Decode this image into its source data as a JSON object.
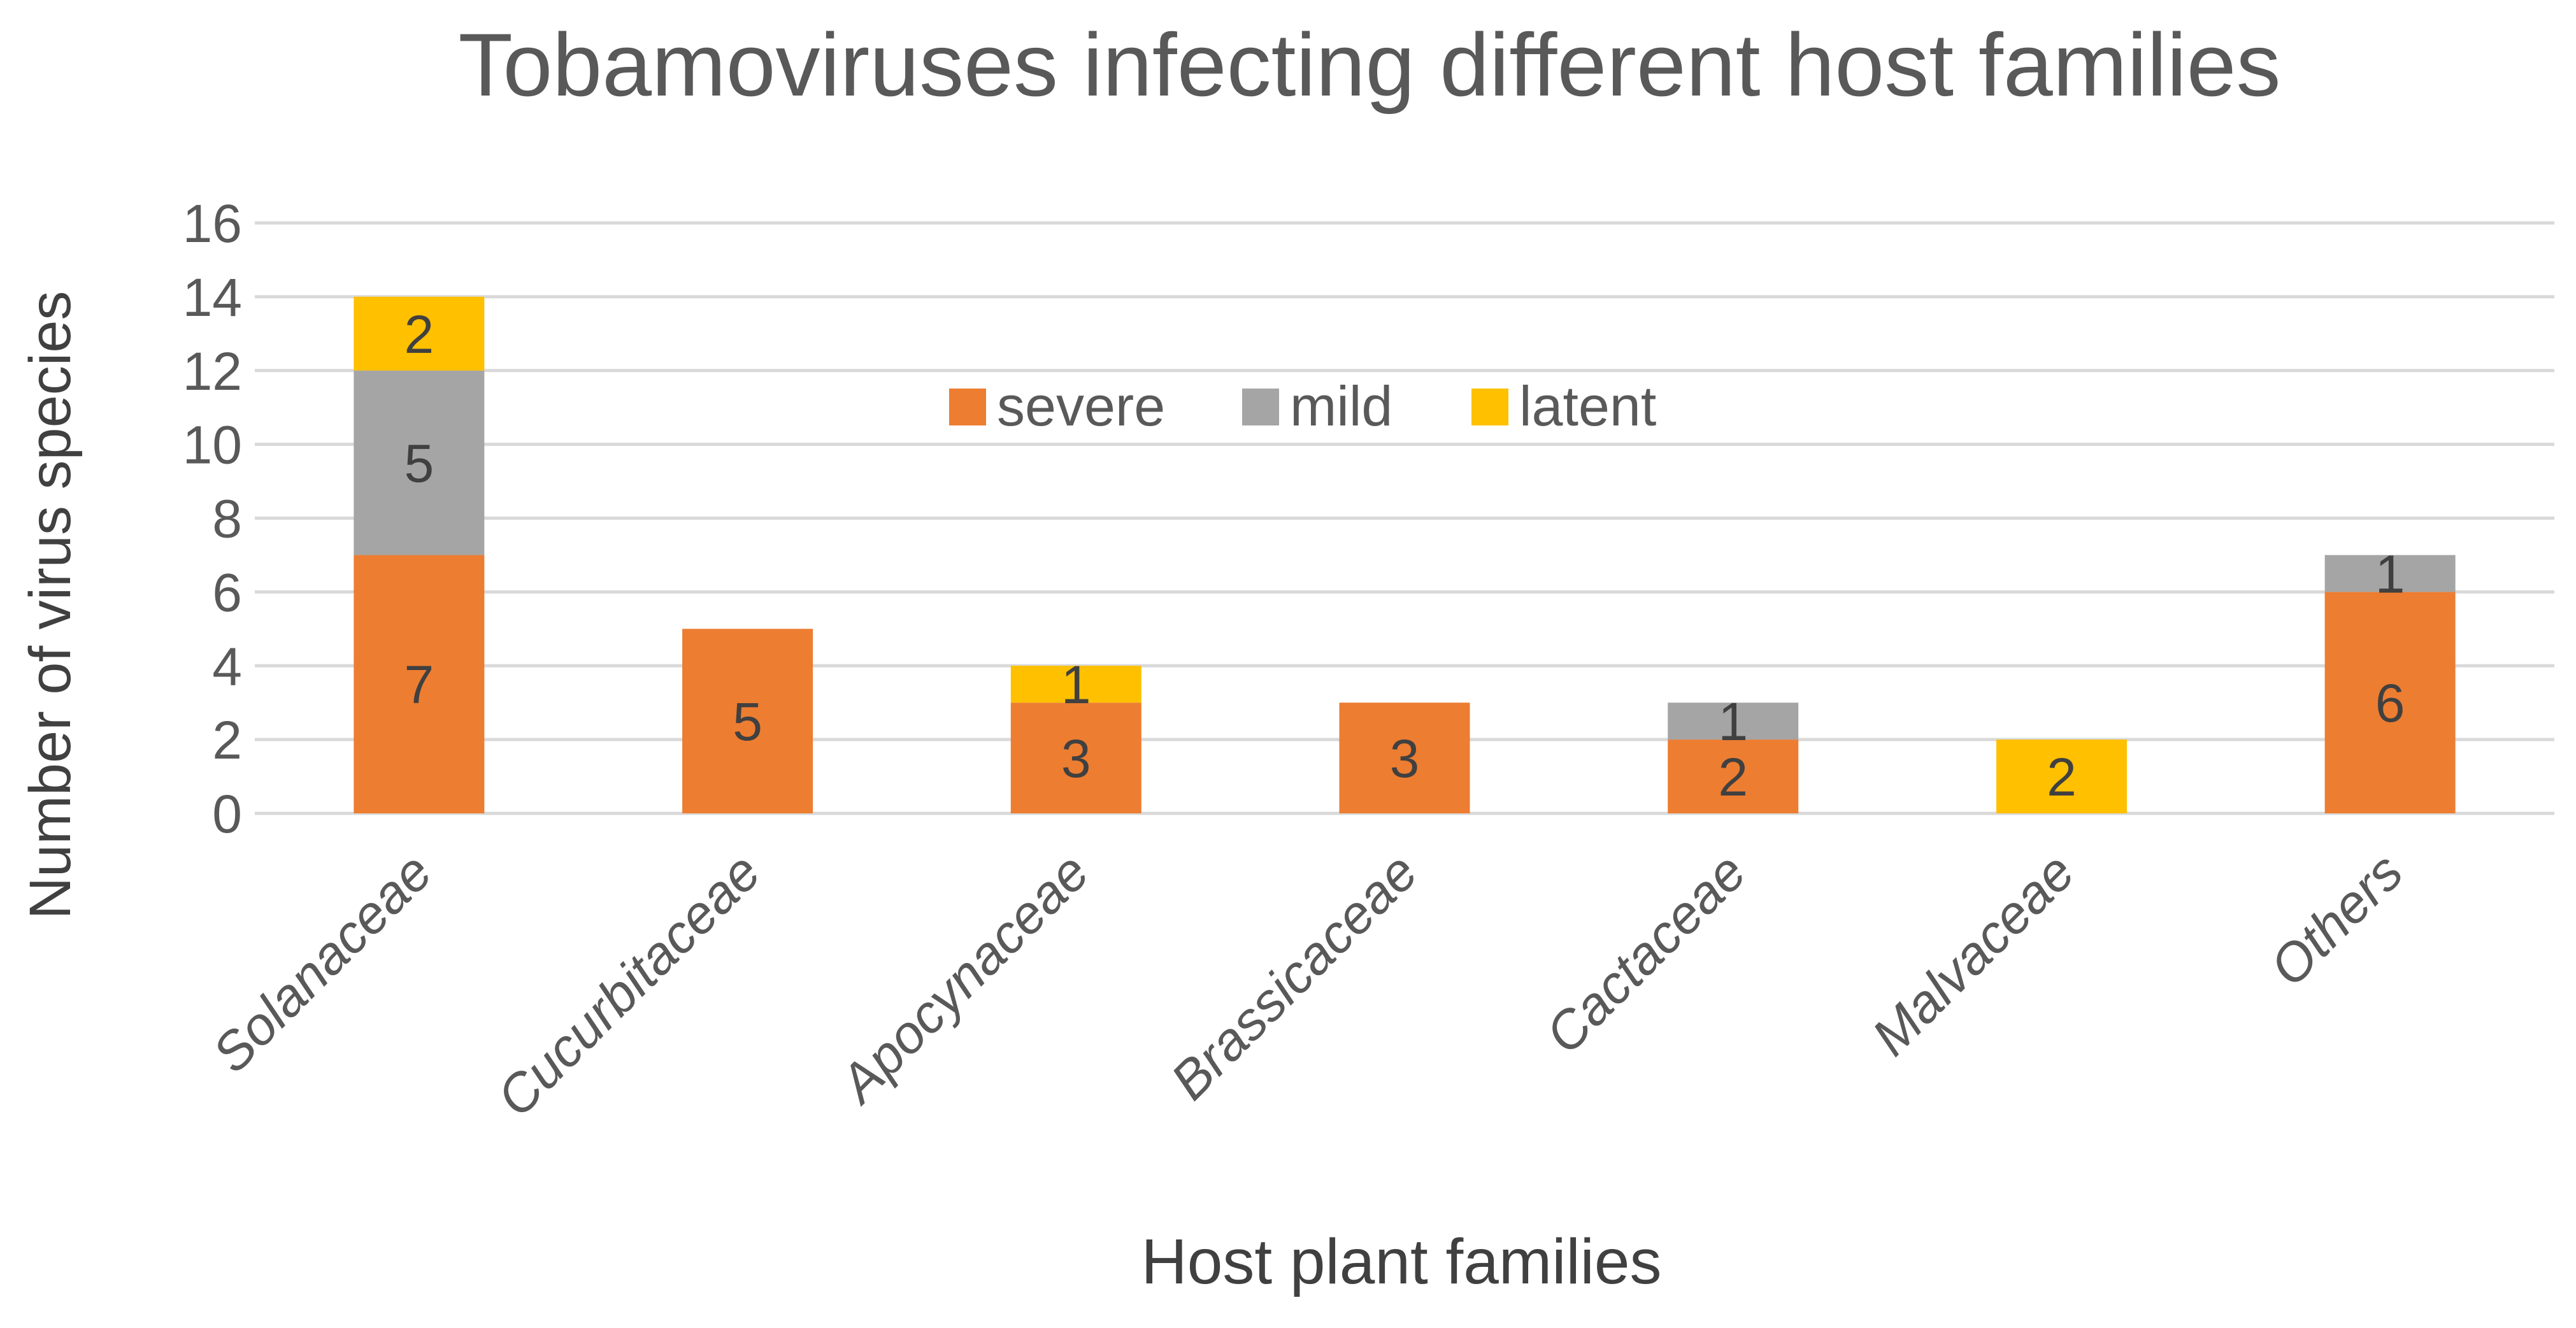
{
  "chart_data": {
    "type": "stacked-bar",
    "title": "Tobamoviruses infecting different host families",
    "xlabel": "Host plant families",
    "ylabel": "Number of virus species",
    "ylim": [
      0,
      16
    ],
    "yticks": [
      0,
      2,
      4,
      6,
      8,
      10,
      12,
      14,
      16
    ],
    "grid": true,
    "legend_position": "top-center",
    "categories": [
      "Solanaceae",
      "Cucurbitaceae",
      "Apocynaceae",
      "Brassicaceae",
      "Cactaceae",
      "Malvaceae",
      "Others"
    ],
    "series": [
      {
        "name": "severe",
        "color": "#ED7D31",
        "values": [
          7,
          5,
          3,
          3,
          2,
          0,
          6
        ]
      },
      {
        "name": "mild",
        "color": "#A5A5A5",
        "values": [
          5,
          0,
          0,
          0,
          1,
          0,
          1
        ]
      },
      {
        "name": "latent",
        "color": "#FFC000",
        "values": [
          2,
          0,
          1,
          0,
          0,
          2,
          0
        ]
      }
    ]
  },
  "colors": {
    "title_text": "#595959",
    "tick_text": "#595959",
    "label_text": "#404040",
    "data_label_text": "#404040",
    "gridline": "#D9D9D9"
  }
}
